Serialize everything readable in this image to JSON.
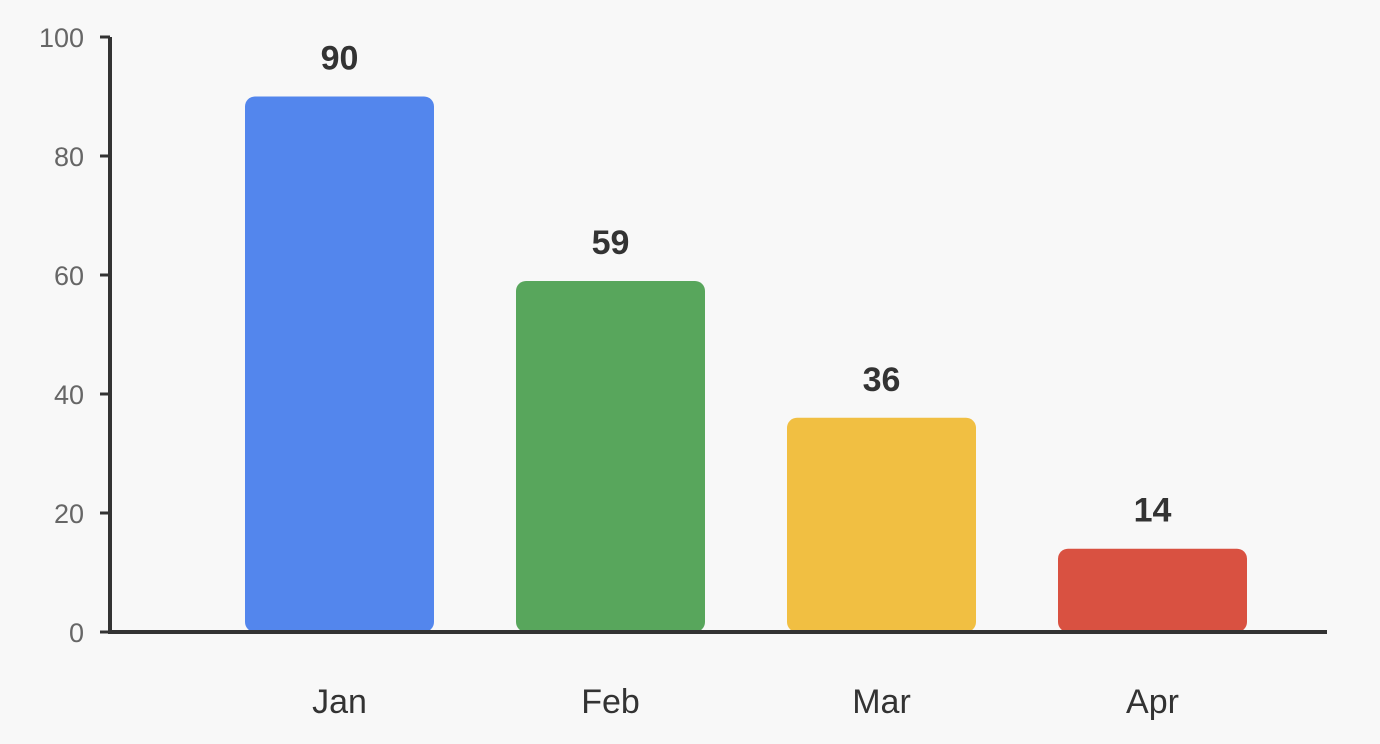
{
  "chart_data": {
    "type": "bar",
    "categories": [
      "Jan",
      "Feb",
      "Mar",
      "Apr"
    ],
    "values": [
      90,
      59,
      36,
      14
    ],
    "colors": [
      "#5386ED",
      "#58A65C",
      "#F1BF42",
      "#D95141"
    ],
    "title": "",
    "xlabel": "",
    "ylabel": "",
    "ylim": [
      0,
      100
    ],
    "yticks": [
      0,
      20,
      40,
      60,
      80,
      100
    ],
    "ytick_labels": [
      "0",
      "20",
      "40",
      "60",
      "80",
      "100"
    ],
    "data_labels": [
      "90",
      "59",
      "36",
      "14"
    ],
    "grid": false,
    "legend": "none"
  }
}
